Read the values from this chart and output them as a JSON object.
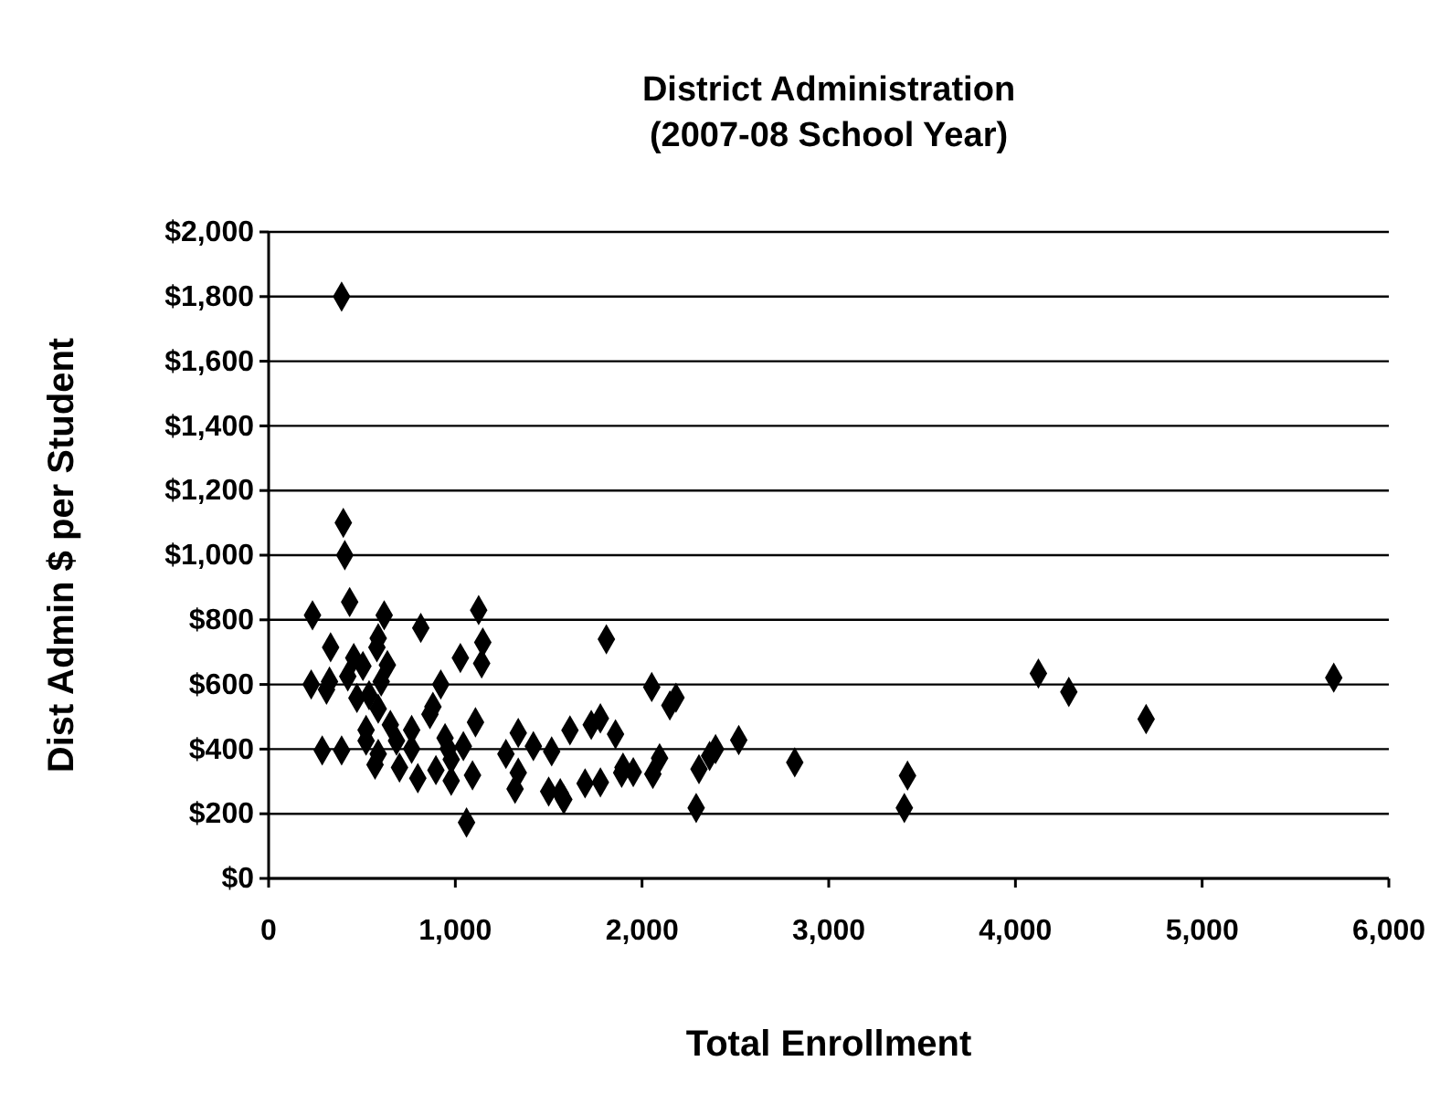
{
  "chart_data": {
    "type": "scatter",
    "title": "District Administration\n(2007-08 School Year)",
    "xlabel": "Total Enrollment",
    "ylabel": "Dist Admin $ per Student",
    "xlim": [
      0,
      6000
    ],
    "ylim": [
      0,
      2000
    ],
    "xticks": [
      0,
      {
        "value": 1000,
        "label": "1,000"
      },
      {
        "value": 2000,
        "label": "2,000"
      },
      {
        "value": 3000,
        "label": "3,000"
      },
      {
        "value": 4000,
        "label": "4,000"
      },
      {
        "value": 5000,
        "label": "5,000"
      },
      {
        "value": 6000,
        "label": "6,000"
      }
    ],
    "yticks": [
      {
        "value": 0,
        "label": "$0"
      },
      {
        "value": 200,
        "label": "$200"
      },
      {
        "value": 400,
        "label": "$400"
      },
      {
        "value": 600,
        "label": "$600"
      },
      {
        "value": 800,
        "label": "$800"
      },
      {
        "value": 1000,
        "label": "$1,000"
      },
      {
        "value": 1200,
        "label": "$1,200"
      },
      {
        "value": 1400,
        "label": "$1,400"
      },
      {
        "value": 1600,
        "label": "$1,600"
      },
      {
        "value": 1800,
        "label": "$1,800"
      },
      {
        "value": 2000,
        "label": "$2,000"
      }
    ],
    "grid": "y",
    "marker": "diamond",
    "series": [
      {
        "color": "#000000",
        "x": [
          391,
          400,
          408,
          434,
          235,
          619,
          1125,
          815,
          587,
          580,
          332,
          1809,
          1147,
          1027,
          1141,
          456,
          505,
          636,
          228,
          310,
          326,
          424,
          603,
          922,
          473,
          538,
          587,
          880,
          864,
          1108,
          1337,
          1614,
          1777,
          1728,
          1858,
          522,
          652,
          766,
          522,
          685,
          287,
          391,
          587,
          766,
          945,
          962,
          1043,
          1271,
          1418,
          1516,
          570,
          701,
          799,
          896,
          978,
          978,
          1092,
          1337,
          1320,
          1500,
          1581,
          1695,
          1777,
          1891,
          1060,
          2052,
          2182,
          2149,
          2518,
          2394,
          2362,
          2094,
          1898,
          1953,
          2058,
          2305,
          1562,
          2818,
          3422,
          2290,
          3405,
          4123,
          4286,
          4700,
          5705
        ],
        "values": [
          1800,
          1100,
          1000,
          855,
          814,
          814,
          830,
          775,
          743,
          715,
          715,
          740,
          730,
          682,
          665,
          682,
          657,
          660,
          600,
          584,
          609,
          625,
          609,
          600,
          558,
          567,
          525,
          531,
          508,
          483,
          450,
          458,
          495,
          475,
          446,
          459,
          475,
          459,
          426,
          426,
          396,
          396,
          385,
          401,
          434,
          401,
          409,
          385,
          409,
          393,
          352,
          343,
          310,
          335,
          368,
          302,
          319,
          327,
          277,
          269,
          244,
          294,
          297,
          327,
          173,
          592,
          559,
          535,
          428,
          400,
          379,
          372,
          343,
          329,
          323,
          338,
          264,
          359,
          318,
          218,
          218,
          634,
          577,
          493,
          621
        ]
      }
    ]
  }
}
